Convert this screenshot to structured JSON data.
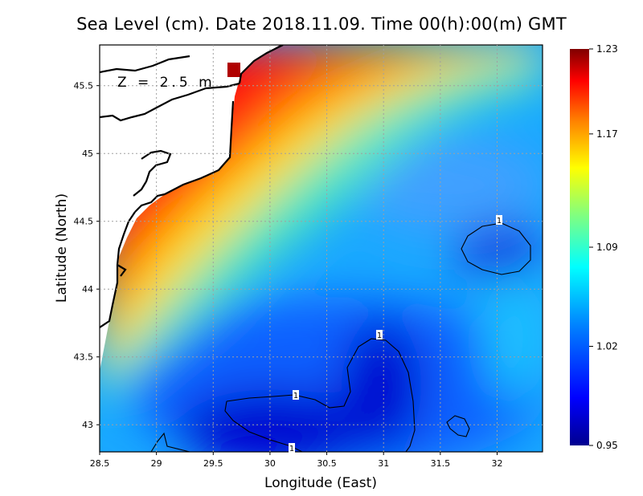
{
  "chart_data": {
    "type": "heatmap",
    "title": "Sea Level (cm). Date 2018.11.09. Time 00(h):00(m) GMT",
    "annotation": "Z = 2.5 m",
    "xlabel": "Longitude (East)",
    "ylabel": "Latitude (North)",
    "x_ticks": [
      "28.5",
      "29",
      "29.5",
      "30",
      "30.5",
      "31",
      "31.5",
      "32"
    ],
    "y_ticks": [
      "43",
      "43.5",
      "44",
      "44.5",
      "45",
      "45.5"
    ],
    "xlim": [
      28.5,
      32.4
    ],
    "ylim": [
      42.8,
      45.8
    ],
    "grid": true,
    "colorbar": {
      "ticks": [
        "1.23",
        "1.17",
        "1.09",
        "1.02",
        "0.95"
      ],
      "range": [
        0.95,
        1.23
      ],
      "colormap": [
        "#00008f",
        "#0000ff",
        "#0080ff",
        "#00ffff",
        "#80ff80",
        "#ffff00",
        "#ff8000",
        "#ff0000",
        "#800000"
      ]
    },
    "contour_level": "1",
    "contour_labels": [
      "1",
      "1",
      "1",
      "1"
    ],
    "field_description": "Sea level highest (~1.23) along the northwestern coast, decreasing toward the south-east; minima (~0.95) near 30.0E 43.0N and 31.0E 43.3N, secondary low near 32.0E 44.3N"
  }
}
